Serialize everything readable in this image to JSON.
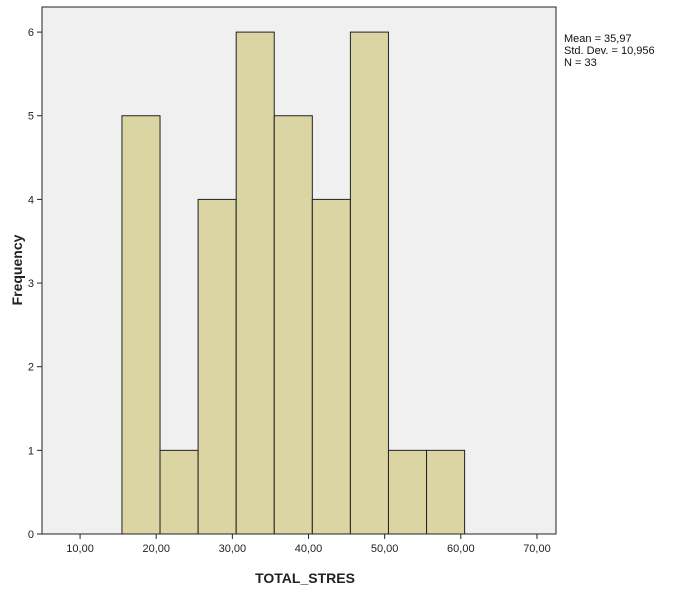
{
  "chart_data": {
    "type": "bar",
    "subtype": "histogram",
    "xlabel": "TOTAL_STRES",
    "ylabel": "Frequency",
    "xlim": [
      5,
      72.5
    ],
    "ylim": [
      0,
      6.3
    ],
    "x_ticks": [
      10,
      20,
      30,
      40,
      50,
      60,
      70
    ],
    "x_tick_labels": [
      "10,00",
      "20,00",
      "30,00",
      "40,00",
      "50,00",
      "60,00",
      "70,00"
    ],
    "y_ticks": [
      0,
      1,
      2,
      3,
      4,
      5,
      6
    ],
    "y_tick_labels": [
      "0",
      "1",
      "2",
      "3",
      "4",
      "5",
      "6"
    ],
    "bins": [
      {
        "start": 15.5,
        "end": 20.5,
        "frequency": 5
      },
      {
        "start": 20.5,
        "end": 25.5,
        "frequency": 1
      },
      {
        "start": 25.5,
        "end": 30.5,
        "frequency": 4
      },
      {
        "start": 30.5,
        "end": 35.5,
        "frequency": 6
      },
      {
        "start": 35.5,
        "end": 40.5,
        "frequency": 5
      },
      {
        "start": 40.5,
        "end": 45.5,
        "frequency": 4
      },
      {
        "start": 45.5,
        "end": 50.5,
        "frequency": 6
      },
      {
        "start": 50.5,
        "end": 55.5,
        "frequency": 1
      },
      {
        "start": 55.5,
        "end": 60.5,
        "frequency": 1
      }
    ],
    "stats": [
      "Mean = 35,97",
      "Std. Dev. = 10,956",
      "N = 33"
    ],
    "grid": false,
    "legend": "none",
    "colors": {
      "bar_fill": "#d6d094",
      "bar_stroke": "#222222",
      "plot_background": "#f0f0f0",
      "axis": "#222222"
    }
  }
}
